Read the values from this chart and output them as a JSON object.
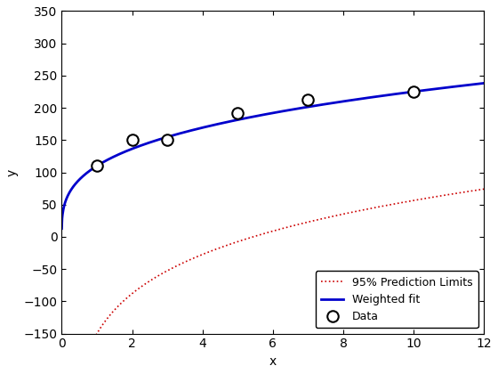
{
  "data_x": [
    1,
    2,
    3,
    5,
    7,
    10
  ],
  "data_y": [
    110,
    150,
    150,
    192,
    212,
    225
  ],
  "fit_params": {
    "a": 230.0,
    "b": 0.55
  },
  "x_range": [
    0.001,
    12
  ],
  "ylim": [
    -150,
    350
  ],
  "xlim": [
    0,
    12
  ],
  "xlabel": "x",
  "ylabel": "y",
  "fit_color": "#0000cc",
  "pred_color": "#cc0000",
  "fit_linewidth": 2.0,
  "pred_linewidth": 1.2,
  "marker": "o",
  "marker_size": 9,
  "marker_facecolor": "white",
  "marker_edgecolor": "black",
  "marker_edgewidth": 1.5,
  "legend_labels": [
    "Data",
    "Weighted fit",
    "95% Prediction Limits"
  ],
  "background_color": "#ffffff",
  "pred_band_a": 160.0,
  "pred_band_b": 0.28,
  "pred_band_c": 115.0
}
